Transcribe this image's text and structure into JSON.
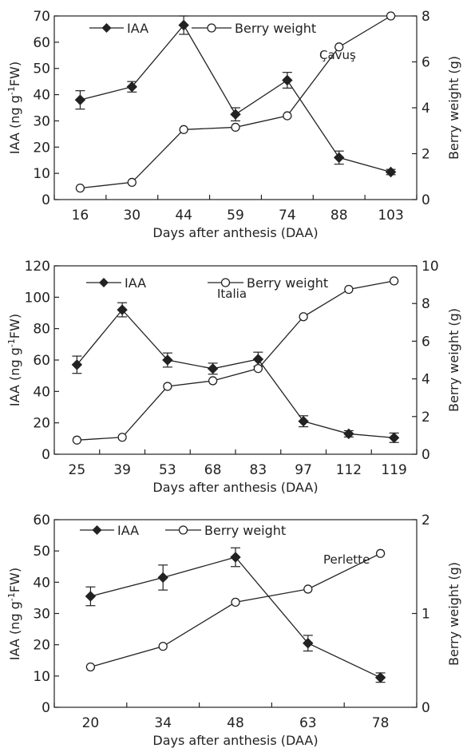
{
  "chart_data": [
    {
      "type": "line",
      "title": "",
      "annotation": "Çavuş",
      "categories": [
        "16",
        "30",
        "44",
        "59",
        "74",
        "88",
        "103"
      ],
      "xlabel": "Days after anthesis (DAA)",
      "ylabel": "IAA (ng g",
      "ylabel_sup": "-1",
      "ylabel_end": "FW)",
      "y2label": "Berry weight (g)",
      "ylim": [
        0,
        70
      ],
      "yticks": [
        0,
        10,
        20,
        30,
        40,
        50,
        60,
        70
      ],
      "y2lim": [
        0,
        8
      ],
      "y2ticks": [
        0,
        2,
        4,
        6,
        8
      ],
      "series": [
        {
          "name": "IAA",
          "axis": "left",
          "marker": "filled-diamond",
          "values": [
            38,
            43,
            66.5,
            32.5,
            45.5,
            16,
            10.5
          ],
          "errors": [
            3.5,
            2,
            3.5,
            2.5,
            3,
            2.5,
            1
          ]
        },
        {
          "name": "Berry weight",
          "axis": "right",
          "marker": "open-circle",
          "values": [
            0.5,
            0.75,
            3.05,
            3.15,
            3.65,
            6.65,
            8.0
          ]
        }
      ]
    },
    {
      "type": "line",
      "title": "",
      "annotation": "Italia",
      "categories": [
        "25",
        "39",
        "53",
        "68",
        "83",
        "97",
        "112",
        "119"
      ],
      "xlabel": "Days after anthesis (DAA)",
      "ylabel": "IAA (ng g",
      "ylabel_sup": "-1",
      "ylabel_end": "FW)",
      "y2label": "Berry weight (g)",
      "ylim": [
        0,
        120
      ],
      "yticks": [
        0,
        20,
        40,
        60,
        80,
        100,
        120
      ],
      "y2lim": [
        0,
        10
      ],
      "y2ticks": [
        0,
        2,
        4,
        6,
        8,
        10
      ],
      "series": [
        {
          "name": "IAA",
          "axis": "left",
          "marker": "filled-diamond",
          "values": [
            57,
            92,
            60,
            54.5,
            60.5,
            21,
            13,
            10.5
          ],
          "errors": [
            5.5,
            4.5,
            4.5,
            3.5,
            4.5,
            3.5,
            2,
            3
          ]
        },
        {
          "name": "Berry weight",
          "axis": "right",
          "marker": "open-circle",
          "values": [
            0.75,
            0.9,
            3.6,
            3.9,
            4.55,
            7.3,
            8.75,
            9.2
          ]
        }
      ]
    },
    {
      "type": "line",
      "title": "",
      "annotation": "Perlette",
      "categories": [
        "20",
        "34",
        "48",
        "63",
        "78"
      ],
      "xlabel": "Days after anthesis (DAA)",
      "ylabel": "IAA (ng g",
      "ylabel_sup": "-1",
      "ylabel_end": "FW)",
      "y2label": "Berry weight (g)",
      "ylim": [
        0,
        60
      ],
      "yticks": [
        0,
        10,
        20,
        30,
        40,
        50,
        60
      ],
      "y2lim": [
        0,
        2
      ],
      "y2ticks": [
        0,
        1,
        2
      ],
      "series": [
        {
          "name": "IAA",
          "axis": "left",
          "marker": "filled-diamond",
          "values": [
            35.5,
            41.5,
            48,
            20.5,
            9.5
          ],
          "errors": [
            3,
            4,
            3,
            2.5,
            1.5
          ]
        },
        {
          "name": "Berry weight",
          "axis": "right",
          "marker": "open-circle",
          "values": [
            0.43,
            0.65,
            1.12,
            1.26,
            1.64
          ]
        }
      ]
    }
  ]
}
